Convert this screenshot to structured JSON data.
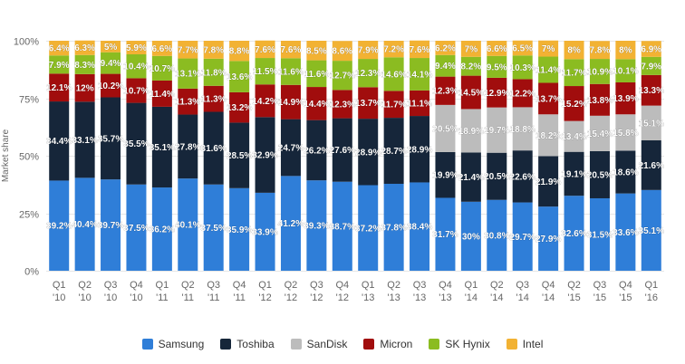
{
  "chart_data": {
    "type": "bar",
    "stacked": true,
    "title": "",
    "xlabel": "",
    "ylabel": "Market share",
    "ylim": [
      0,
      100
    ],
    "ytick_labels": [
      "0%",
      "25%",
      "50%",
      "75%",
      "100%"
    ],
    "ytick_values": [
      0,
      25,
      50,
      75,
      100
    ],
    "legend_position": "bottom",
    "grid": true,
    "categories": [
      [
        "Q1",
        "'10"
      ],
      [
        "Q2",
        "'10"
      ],
      [
        "Q3",
        "'10"
      ],
      [
        "Q4",
        "'10"
      ],
      [
        "Q1",
        "'11"
      ],
      [
        "Q2",
        "'11"
      ],
      [
        "Q3",
        "'11"
      ],
      [
        "Q4",
        "'11"
      ],
      [
        "Q1",
        "'12"
      ],
      [
        "Q2",
        "'12"
      ],
      [
        "Q3",
        "'12"
      ],
      [
        "Q4",
        "'12"
      ],
      [
        "Q1",
        "'13"
      ],
      [
        "Q2",
        "'13"
      ],
      [
        "Q3",
        "'13"
      ],
      [
        "Q4",
        "'13"
      ],
      [
        "Q1",
        "'14"
      ],
      [
        "Q2",
        "'14"
      ],
      [
        "Q3",
        "'14"
      ],
      [
        "Q4",
        "'14"
      ],
      [
        "Q2",
        "'15"
      ],
      [
        "Q3",
        "'15"
      ],
      [
        "Q4",
        "'15"
      ],
      [
        "Q1",
        "'16"
      ]
    ],
    "series": [
      {
        "name": "Samsung",
        "color": "#2f7ed8",
        "values": [
          39.2,
          40.4,
          39.7,
          37.5,
          36.2,
          40.1,
          37.5,
          35.9,
          33.9,
          41.2,
          39.3,
          38.7,
          37.2,
          37.8,
          38.4,
          31.7,
          30,
          30.8,
          29.7,
          27.9,
          32.6,
          31.5,
          33.6,
          35.1
        ],
        "labels": [
          "39.2%",
          "40.4%",
          "39.7%",
          "37.5%",
          "36.2%",
          "40.1%",
          "37.5%",
          "35.9%",
          "33.9%",
          "41.2%",
          "39.3%",
          "38.7%",
          "37.2%",
          "37.8%",
          "38.4%",
          "31.7%",
          "30%",
          "30.8%",
          "29.7%",
          "27.9%",
          "32.6%",
          "31.5%",
          "33.6%",
          "35.1%"
        ]
      },
      {
        "name": "Toshiba",
        "color": "#16263a",
        "values": [
          34.4,
          33.1,
          35.7,
          35.5,
          35.1,
          27.8,
          31.6,
          28.5,
          32.9,
          24.7,
          26.2,
          27.6,
          28.9,
          28.7,
          28.9,
          19.9,
          21.4,
          20.5,
          22.6,
          21.9,
          19.1,
          20.5,
          18.6,
          21.6
        ],
        "labels": [
          "34.4%",
          "33.1%",
          "35.7%",
          "35.5%",
          "35.1%",
          "27.8%",
          "31.6%",
          "28.5%",
          "32.9%",
          "24.7%",
          "26.2%",
          "27.6%",
          "28.9%",
          "28.7%",
          "28.9%",
          "19.9%",
          "21.4%",
          "20.5%",
          "22.6%",
          "21.9%",
          "19.1%",
          "20.5%",
          "18.6%",
          "21.6%"
        ]
      },
      {
        "name": "SanDisk",
        "color": "#bcbcbc",
        "values": [
          0,
          0,
          0,
          0,
          0,
          0,
          0,
          0,
          0,
          0,
          0,
          0,
          0,
          0,
          0,
          20.5,
          18.9,
          19.7,
          18.8,
          18.2,
          13.4,
          15.4,
          15.8,
          15.1
        ],
        "labels": [
          "",
          "",
          "",
          "",
          "",
          "",
          "",
          "",
          "",
          "",
          "",
          "",
          "",
          "",
          "",
          "20.5%",
          "18.9%",
          "19.7%",
          "18.8%",
          "18.2%",
          "13.4%",
          "15.4%",
          "15.8%",
          "15.1%"
        ]
      },
      {
        "name": "Micron",
        "color": "#a10d0d",
        "values": [
          12.1,
          12,
          10.2,
          10.7,
          11.4,
          11.3,
          11.3,
          13.2,
          14.2,
          14.9,
          14.4,
          12.3,
          13.7,
          11.7,
          11.1,
          12.3,
          14.5,
          12.9,
          12.2,
          13.7,
          15.2,
          13.8,
          13.9,
          13.3
        ],
        "labels": [
          "12.1%",
          "12%",
          "10.2%",
          "10.7%",
          "11.4%",
          "11.3%",
          "11.3%",
          "13.2%",
          "14.2%",
          "14.9%",
          "14.4%",
          "12.3%",
          "13.7%",
          "11.7%",
          "11.1%",
          "12.3%",
          "14.5%",
          "12.9%",
          "12.2%",
          "13.7%",
          "15.2%",
          "13.8%",
          "13.9%",
          "13.3%"
        ]
      },
      {
        "name": "SK Hynix",
        "color": "#8bbc21",
        "values": [
          7.9,
          8.3,
          9.4,
          10.4,
          10.7,
          13.1,
          11.8,
          13.6,
          11.5,
          11.6,
          11.6,
          12.7,
          12.3,
          14.6,
          14.1,
          9.4,
          8.2,
          9.5,
          10.3,
          11.4,
          11.7,
          10.9,
          10.1,
          7.9
        ],
        "labels": [
          "7.9%",
          "8.3%",
          "9.4%",
          "10.4%",
          "10.7%",
          "13.1%",
          "11.8%",
          "13.6%",
          "11.5%",
          "11.6%",
          "11.6%",
          "12.7%",
          "12.3%",
          "14.6%",
          "14.1%",
          "9.4%",
          "8.2%",
          "9.5%",
          "10.3%",
          "11.4%",
          "11.7%",
          "10.9%",
          "10.1%",
          "7.9%"
        ]
      },
      {
        "name": "Intel",
        "color": "#f2b233",
        "values": [
          6.4,
          6.3,
          5,
          5.9,
          6.6,
          7.7,
          7.8,
          8.8,
          7.6,
          7.6,
          8.5,
          8.6,
          7.9,
          7.2,
          7.6,
          6.2,
          7,
          6.6,
          6.5,
          7,
          8,
          7.8,
          8,
          6.9
        ],
        "labels": [
          "6.4%",
          "6.3%",
          "5%",
          "5.9%",
          "6.6%",
          "7.7%",
          "7.8%",
          "8.8%",
          "7.6%",
          "7.6%",
          "8.5%",
          "8.6%",
          "7.9%",
          "7.2%",
          "7.6%",
          "6.2%",
          "7%",
          "6.6%",
          "6.5%",
          "7%",
          "8%",
          "7.8%",
          "8%",
          "6.9%"
        ]
      }
    ]
  }
}
